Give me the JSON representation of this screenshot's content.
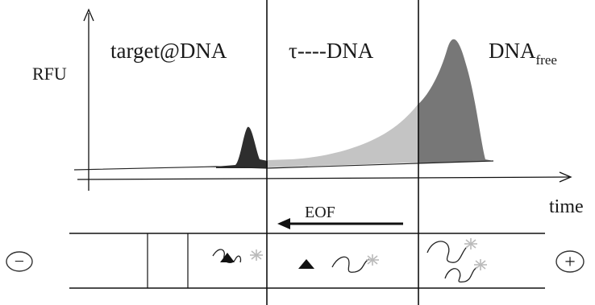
{
  "plot": {
    "y_axis_label": "RFU",
    "x_axis_label": "time",
    "regions": [
      {
        "label": "target@DNA"
      },
      {
        "label": "τ----DNA"
      },
      {
        "label": "DNA",
        "subscript": "free"
      }
    ],
    "colors": {
      "region1_peak": "#2e2e2e",
      "region2_fill": "#c4c4c4",
      "region3_fill": "#777777",
      "axis": "#111111"
    }
  },
  "capillary": {
    "flow_label": "EOF",
    "left_electrode_symbol": "−",
    "right_electrode_symbol": "+"
  }
}
